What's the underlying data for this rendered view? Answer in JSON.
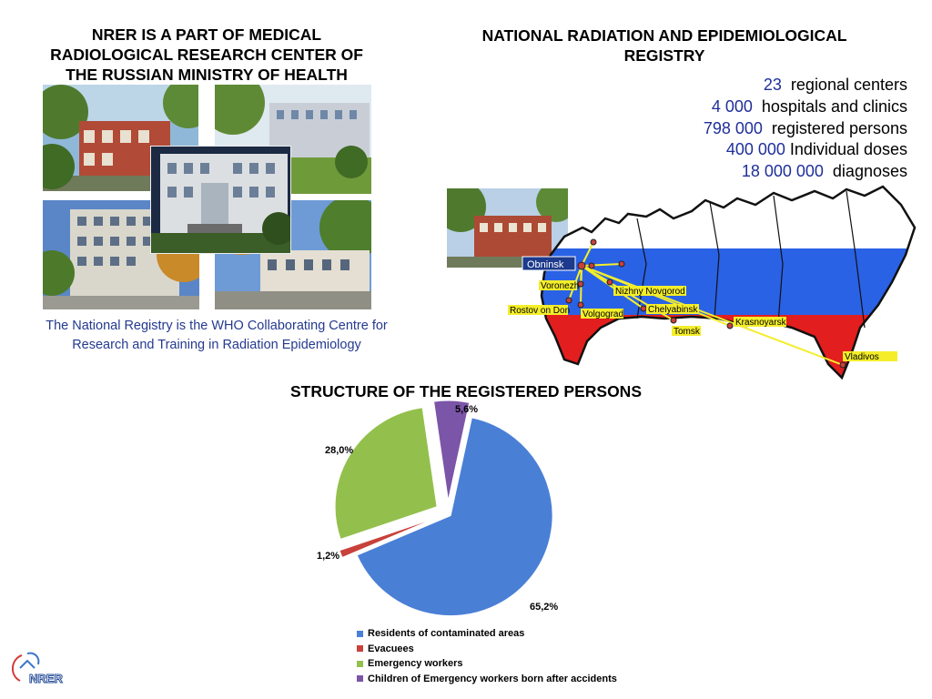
{
  "left_header": {
    "lines": [
      "NRER  IS  A PART OF MEDICAL",
      "RADIOLOGICAL RESEARCH CENTER OF",
      "THE RUSSIAN MINISTRY OF HEALTH"
    ]
  },
  "right_header": {
    "lines": [
      "NATIONAL RADIATION  AND EPIDEMIOLOGICAL",
      "REGISTRY"
    ]
  },
  "stats": [
    {
      "value": "23",
      "label": "regional centers"
    },
    {
      "value": "4 000",
      "label": "hospitals and clinics"
    },
    {
      "value": "798 000",
      "label": "registered persons"
    },
    {
      "value": "400 000",
      "label": "Individual doses"
    },
    {
      "value": "18 000 000",
      "label": "diagnoses"
    }
  ],
  "who_note": {
    "lines": [
      "The National Registry is the WHO Collaborating Centre for",
      "Research and Training in Radiation Epidemiology"
    ]
  },
  "map": {
    "cities": {
      "obninsk": "Obninsk",
      "voronezh": "Voronezh",
      "rostov": "Rostov on Don",
      "volgograd": "Volgograd",
      "nizhny": "Nizhny Novgorod",
      "chelyabinsk": "Chelyabinsk",
      "tomsk": "Tomsk",
      "krasnoyarsk": "Krasnoyarsk",
      "vladivostok": "Vladivos"
    },
    "flag_colors": {
      "white": "#ffffff",
      "blue": "#2a62e6",
      "red": "#e31e1e"
    }
  },
  "chart_data": {
    "type": "pie",
    "title": "STRUCTURE OF THE REGISTERED PERSONS",
    "categories": [
      "Residents of contaminated areas",
      "Evacuees",
      "Emergency workers",
      "Children of Emergency workers born after accidents"
    ],
    "values": [
      65.2,
      1.2,
      28.0,
      5.6
    ],
    "value_labels": [
      "65,2%",
      "1,2%",
      "28,0%",
      "5,6%"
    ],
    "colors": [
      "#4a7fd6",
      "#c8413b",
      "#93c04c",
      "#7b55a8"
    ],
    "legend_position": "bottom"
  },
  "logo": {
    "text": "NRER"
  }
}
